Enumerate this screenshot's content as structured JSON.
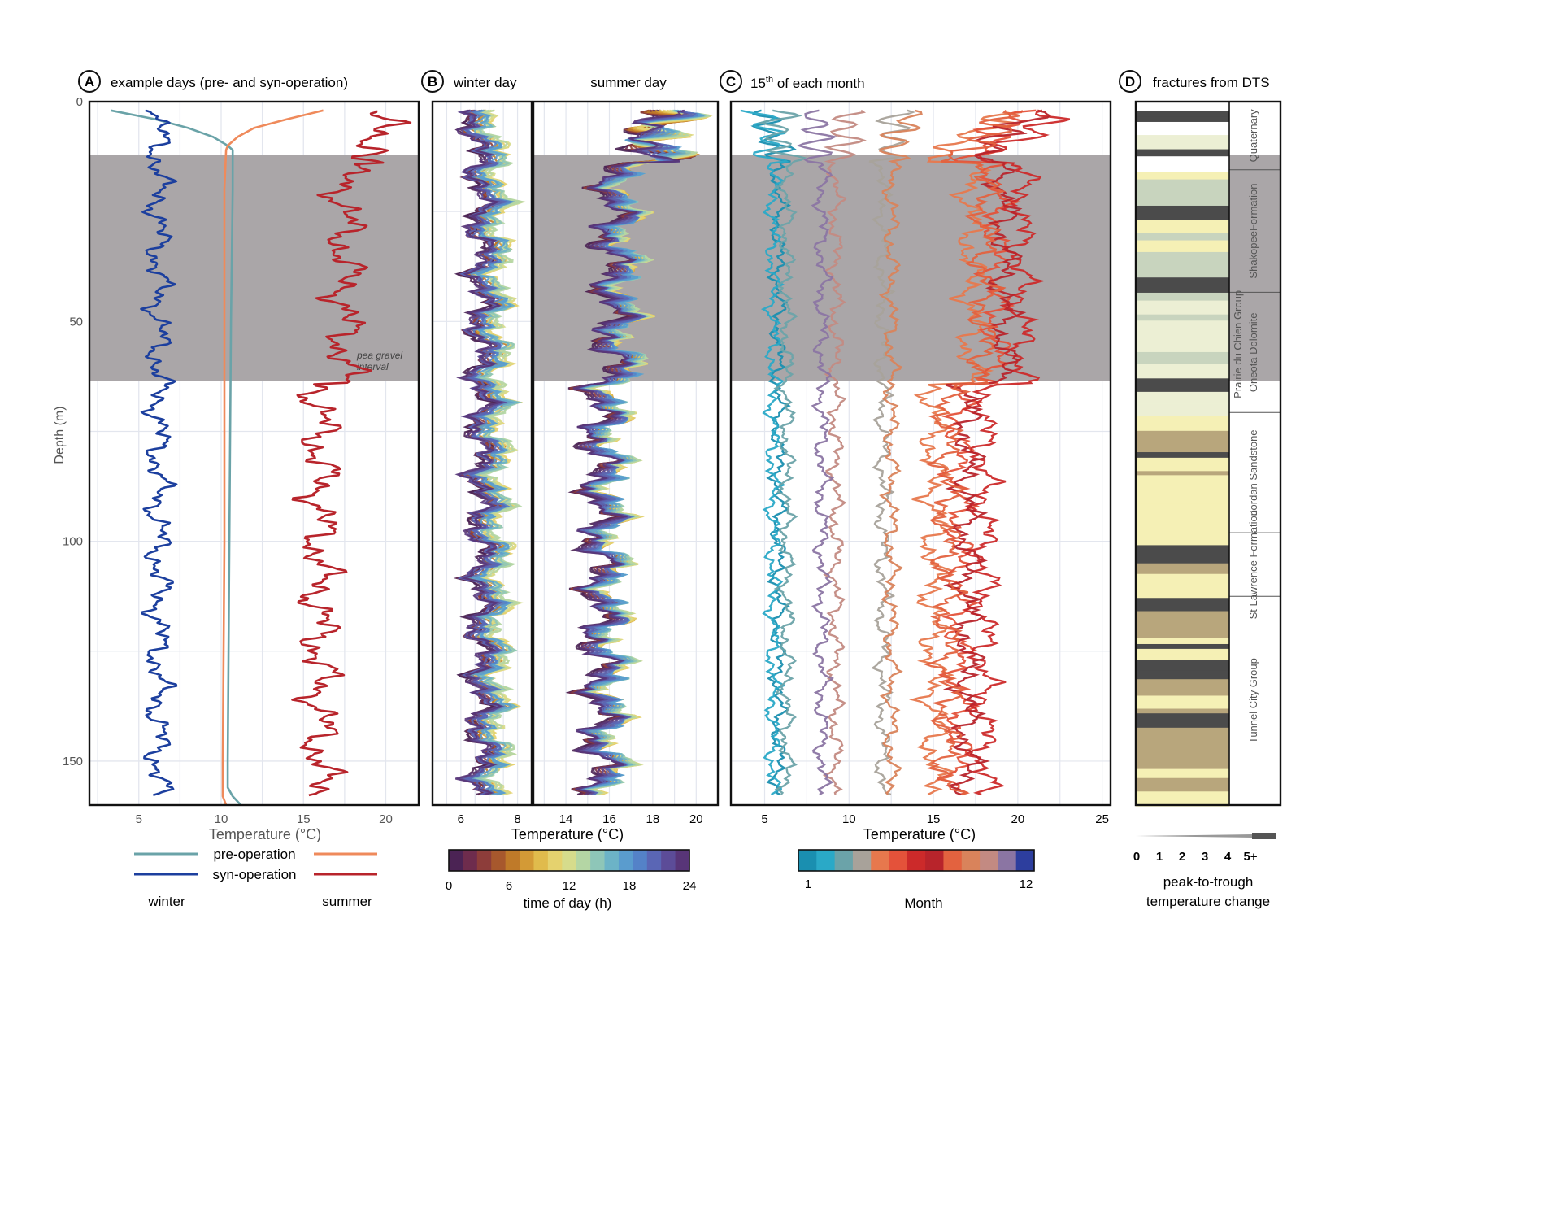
{
  "chart_data": [
    {
      "panel": "A",
      "type": "line",
      "title": "example days (pre- and syn-operation)",
      "xlabel": "Temperature (°C)",
      "ylabel": "Depth (m)",
      "xlim": [
        2,
        22
      ],
      "ylim": [
        0,
        160
      ],
      "xticks": [
        5,
        10,
        15,
        20
      ],
      "yticks": [
        0,
        50,
        100,
        150
      ],
      "grid": true,
      "shaded_interval": {
        "from": 12,
        "to": 64,
        "label": "pea gravel interval"
      },
      "legend": {
        "rows": [
          "pre-operation",
          "syn-operation"
        ],
        "columns": [
          "winter",
          "summer"
        ],
        "colors": {
          "winter_pre": "#6aa3a8",
          "winter_syn": "#1c3f9e",
          "summer_pre": "#ef8a5b",
          "summer_syn": "#b8242b"
        }
      },
      "series": [
        {
          "name": "winter pre-operation",
          "color": "#6aa3a8",
          "depth": [
            2,
            4,
            6,
            8,
            10,
            11,
            20,
            50,
            100,
            150,
            156,
            158,
            160
          ],
          "values": [
            3.3,
            6.0,
            8.0,
            9.5,
            10.4,
            10.7,
            10.7,
            10.6,
            10.5,
            10.4,
            10.4,
            10.7,
            11.2
          ]
        },
        {
          "name": "winter syn-operation",
          "color": "#1c3f9e",
          "base": 6.2,
          "amp": 0.9
        },
        {
          "name": "summer pre-operation",
          "color": "#ef8a5b",
          "depth": [
            2,
            4,
            6,
            8,
            10,
            11,
            20,
            50,
            100,
            150,
            158,
            160
          ],
          "values": [
            16.2,
            14.0,
            12.0,
            11.0,
            10.4,
            10.3,
            10.2,
            10.2,
            10.2,
            10.1,
            10.1,
            10.3
          ]
        },
        {
          "name": "summer syn-operation",
          "color": "#b8242b",
          "base": 16.0,
          "amp": 1.4
        }
      ]
    },
    {
      "panel": "B",
      "type": "line",
      "title": "winter day",
      "title2": "summer day",
      "xlabel": "Temperature (°C)",
      "ylim": [
        0,
        160
      ],
      "winter_xlim": [
        5,
        8.5
      ],
      "winter_xticks": [
        6,
        8
      ],
      "summer_xlim": [
        12.5,
        21
      ],
      "summer_xticks": [
        14,
        16,
        18,
        20
      ],
      "colorbar": {
        "label": "time of day (h)",
        "ticks": [
          0,
          6,
          12,
          18,
          24
        ],
        "colors": [
          "#4b2354",
          "#6e2c4d",
          "#8d3d3a",
          "#a7582d",
          "#bf7a29",
          "#d39a36",
          "#e0bb4c",
          "#e5d26e",
          "#d6dc8c",
          "#b4d6a4",
          "#8ec6b8",
          "#6cb3c7",
          "#5a9cce",
          "#5482c8",
          "#5a66b5",
          "#5c4c98",
          "#583578"
        ]
      },
      "winter_series": {
        "count": 24,
        "base": 7.0,
        "spread": 0.7
      },
      "summer_series": {
        "count": 24,
        "base": 15.6,
        "spread": 1.2
      }
    },
    {
      "panel": "C",
      "type": "line",
      "title_prefix": "15",
      "title_sup": "th",
      "title_suffix": " of each month",
      "xlabel": "Temperature (°C)",
      "xlim": [
        3,
        25.5
      ],
      "xticks": [
        5,
        10,
        15,
        20,
        25
      ],
      "ylim": [
        0,
        160
      ],
      "colorbar": {
        "label": "Month",
        "ticks": [
          1,
          12
        ],
        "colors": [
          "#1a8fb0",
          "#2aa9c7",
          "#6ba3a9",
          "#a8a29a",
          "#e7784d",
          "#e4523a",
          "#cc2a2a",
          "#b8242b",
          "#e3623f",
          "#d9835b",
          "#c38a82",
          "#8b75a3",
          "#2d3e9e"
        ]
      },
      "series": [
        {
          "month": 1,
          "base": 5.8
        },
        {
          "month": 2,
          "base": 5.5
        },
        {
          "month": 3,
          "base": 6.3
        },
        {
          "month": 4,
          "base": 12.0
        },
        {
          "month": 5,
          "base": 15.0
        },
        {
          "month": 6,
          "base": 16.5
        },
        {
          "month": 7,
          "base": 18.0
        },
        {
          "month": 8,
          "base": 17.0
        },
        {
          "month": 9,
          "base": 15.8
        },
        {
          "month": 10,
          "base": 12.5
        },
        {
          "month": 11,
          "base": 9.2
        },
        {
          "month": 12,
          "base": 8.4
        }
      ]
    },
    {
      "panel": "D",
      "type": "table",
      "title": "fractures from DTS",
      "scale_label_line1": "peak-to-trough",
      "scale_label_line2": "temperature change",
      "scale_ticks": [
        "0",
        "1",
        "2",
        "3",
        "4",
        "5+"
      ],
      "formations": [
        {
          "name": "Quaternary",
          "top": 0,
          "bottom": 30
        },
        {
          "name": "ShakopeeFormation",
          "top": 30,
          "bottom": 84
        },
        {
          "name": "Oneota Dolomite",
          "top": 84,
          "bottom": 137
        },
        {
          "name": "Jordan Sandstone",
          "top": 137,
          "bottom": 190
        },
        {
          "name": "St Lawrence Formation",
          "top": 190,
          "bottom": 218
        },
        {
          "name": "Tunnel City Group",
          "top": 218,
          "bottom": 310
        }
      ],
      "group_label": "Prairie du Chien Group",
      "colors": {
        "pale": "#ecefd4",
        "yellow": "#f5f0b5",
        "sage": "#c8d4be",
        "tan": "#b8a67c",
        "dark": "#4b4b4b"
      }
    }
  ]
}
